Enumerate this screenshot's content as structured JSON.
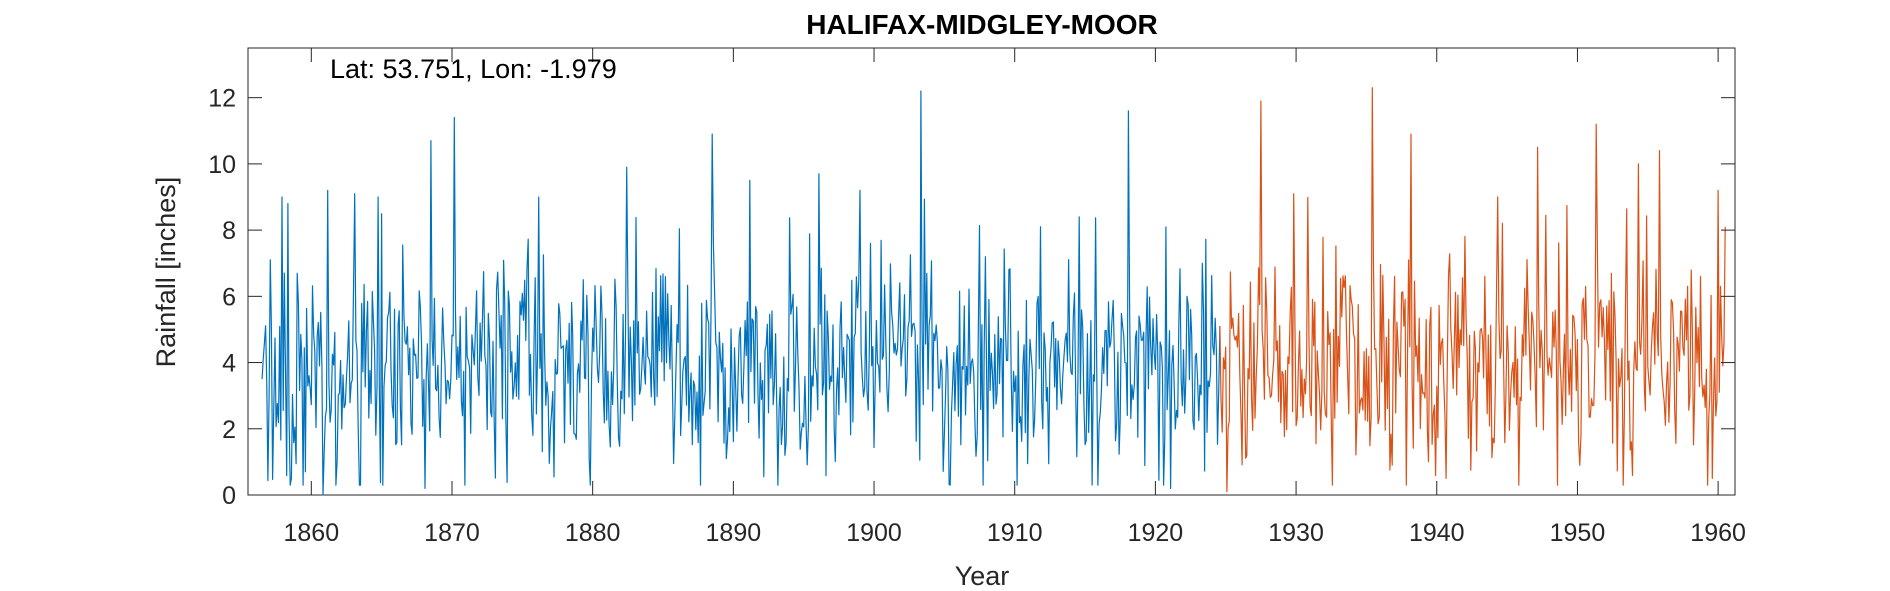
{
  "chart_data": {
    "type": "line",
    "title": "HALIFAX-MIDGLEY-MOOR",
    "annotation": "Lat: 53.751, Lon: -1.979",
    "xlabel": "Year",
    "ylabel": "Rainfall [inches]",
    "xlim": [
      1855.5,
      1961.2
    ],
    "ylim": [
      0,
      13.5
    ],
    "xticks": [
      1860,
      1870,
      1880,
      1890,
      1900,
      1910,
      1920,
      1930,
      1940,
      1950,
      1960
    ],
    "yticks": [
      0,
      2,
      4,
      6,
      8,
      10,
      12
    ],
    "grid": false,
    "legend": "none",
    "series": [
      {
        "color": "#0072BD",
        "x_start": 1856.5,
        "x_end": 1924.6,
        "sampling": "monthly",
        "key_points": [
          {
            "x": 1856.5,
            "y": 3.5
          },
          {
            "x": 1857.1,
            "y": 7.1
          },
          {
            "x": 1858.3,
            "y": 8.8
          },
          {
            "x": 1858.6,
            "y": 0.5
          },
          {
            "x": 1860.8,
            "y": 0.0
          },
          {
            "x": 1861.2,
            "y": 9.2
          },
          {
            "x": 1863.1,
            "y": 9.1
          },
          {
            "x": 1868.1,
            "y": 0.2
          },
          {
            "x": 1868.5,
            "y": 10.7
          },
          {
            "x": 1870.2,
            "y": 11.4
          },
          {
            "x": 1876.2,
            "y": 9.0
          },
          {
            "x": 1882.4,
            "y": 9.9
          },
          {
            "x": 1887.7,
            "y": 0.3
          },
          {
            "x": 1888.5,
            "y": 10.9
          },
          {
            "x": 1891.2,
            "y": 9.5
          },
          {
            "x": 1896.1,
            "y": 9.7
          },
          {
            "x": 1899.0,
            "y": 9.2
          },
          {
            "x": 1903.3,
            "y": 12.2
          },
          {
            "x": 1910.2,
            "y": 0.3
          },
          {
            "x": 1911.8,
            "y": 8.1
          },
          {
            "x": 1914.6,
            "y": 8.4
          },
          {
            "x": 1918.1,
            "y": 11.6
          },
          {
            "x": 1920.6,
            "y": 0.3
          },
          {
            "x": 1921.1,
            "y": 0.2
          },
          {
            "x": 1924.6,
            "y": 5.1
          }
        ]
      },
      {
        "color": "#D95319",
        "x_start": 1924.6,
        "x_end": 1960.5,
        "sampling": "monthly",
        "key_points": [
          {
            "x": 1924.6,
            "y": 5.1
          },
          {
            "x": 1925.1,
            "y": 0.1
          },
          {
            "x": 1927.5,
            "y": 11.9
          },
          {
            "x": 1929.8,
            "y": 9.1
          },
          {
            "x": 1935.4,
            "y": 12.3
          },
          {
            "x": 1938.2,
            "y": 10.9
          },
          {
            "x": 1940.7,
            "y": 0.5
          },
          {
            "x": 1947.2,
            "y": 10.5
          },
          {
            "x": 1951.3,
            "y": 11.2
          },
          {
            "x": 1954.3,
            "y": 10.0
          },
          {
            "x": 1955.8,
            "y": 10.4
          },
          {
            "x": 1959.6,
            "y": 0.5
          },
          {
            "x": 1960.0,
            "y": 9.2
          },
          {
            "x": 1960.5,
            "y": 8.1
          }
        ]
      }
    ]
  }
}
